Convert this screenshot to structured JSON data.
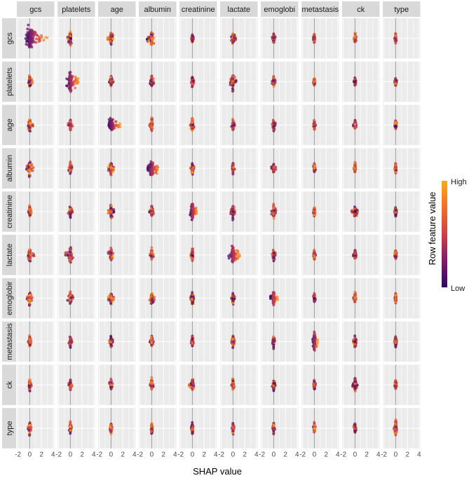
{
  "colors": {
    "panel_background": "#ebebeb",
    "strip_background": "#d9d9d9",
    "grid": "#ffffff",
    "zero_line": "#999999",
    "low": "#2d0a5a",
    "high": "#fcaa1a"
  },
  "chart_data": {
    "type": "scatter",
    "subtype": "SHAP interaction beeswarm matrix",
    "features": [
      "gcs",
      "platelets",
      "age",
      "albumin",
      "creatinine",
      "lactate",
      "emoglobin",
      "metastasis",
      "ck",
      "type"
    ],
    "column_labels": [
      "gcs",
      "platelets",
      "age",
      "albumin",
      "creatinine",
      "lactate",
      "emoglobi",
      "metastasis",
      "ck",
      "type"
    ],
    "row_labels": [
      "gcs",
      "platelets",
      "age",
      "albumin",
      "creatinine",
      "lactate",
      "emoglobir",
      "metastasis",
      "ck",
      "type"
    ],
    "x_ticks": [
      "-2",
      "0",
      "2",
      "4"
    ],
    "xlim": [
      -2.2,
      4.2
    ],
    "xlabel": "SHAP value",
    "legend": {
      "title": "Row feature value",
      "high_label": "High",
      "low_label": "Low",
      "placement": "right"
    },
    "grid": true,
    "cells_note_keys": "row|col : [left extent, right extent, visual spread]",
    "cells": {
      "0|0": [
        -0.7,
        3.0,
        1.0
      ],
      "0|1": [
        -0.5,
        0.2,
        0.7
      ],
      "0|2": [
        -0.6,
        0.4,
        0.6
      ],
      "0|3": [
        -0.8,
        0.4,
        0.7
      ],
      "0|4": [
        -0.2,
        0.2,
        0.4
      ],
      "0|5": [
        -0.3,
        0.5,
        0.6
      ],
      "0|6": [
        -0.3,
        0.3,
        0.5
      ],
      "0|7": [
        -0.2,
        0.2,
        0.5
      ],
      "0|8": [
        -0.2,
        0.2,
        0.5
      ],
      "0|9": [
        -0.2,
        0.2,
        0.5
      ],
      "1|0": [
        -0.4,
        0.5,
        0.6
      ],
      "1|1": [
        -0.7,
        1.4,
        1.0
      ],
      "1|2": [
        -0.3,
        0.4,
        0.6
      ],
      "1|3": [
        -0.3,
        0.4,
        0.6
      ],
      "1|4": [
        -0.2,
        0.3,
        0.5
      ],
      "1|5": [
        -0.5,
        0.6,
        0.8
      ],
      "1|6": [
        -0.3,
        0.3,
        0.5
      ],
      "1|7": [
        -0.2,
        0.2,
        0.4
      ],
      "1|8": [
        -0.2,
        0.2,
        0.4
      ],
      "1|9": [
        -0.2,
        0.2,
        0.4
      ],
      "2|0": [
        -0.6,
        0.6,
        0.6
      ],
      "2|1": [
        -0.4,
        0.4,
        0.6
      ],
      "2|2": [
        -0.4,
        1.6,
        0.7
      ],
      "2|3": [
        -0.4,
        0.4,
        0.6
      ],
      "2|4": [
        -0.4,
        0.4,
        0.7
      ],
      "2|5": [
        -0.3,
        0.3,
        0.6
      ],
      "2|6": [
        -0.3,
        0.3,
        0.6
      ],
      "2|7": [
        -0.2,
        0.2,
        0.5
      ],
      "2|8": [
        -0.3,
        0.3,
        0.5
      ],
      "2|9": [
        -0.2,
        0.2,
        0.5
      ],
      "3|0": [
        -0.6,
        0.7,
        0.7
      ],
      "3|1": [
        -0.3,
        0.3,
        0.6
      ],
      "3|2": [
        -0.5,
        0.5,
        0.7
      ],
      "3|3": [
        -0.7,
        1.3,
        0.7
      ],
      "3|4": [
        -0.3,
        0.3,
        0.6
      ],
      "3|5": [
        -0.3,
        0.3,
        0.6
      ],
      "3|6": [
        -0.4,
        0.4,
        0.6
      ],
      "3|7": [
        -0.2,
        0.2,
        0.5
      ],
      "3|8": [
        -0.2,
        0.2,
        0.5
      ],
      "3|9": [
        -0.2,
        0.2,
        0.5
      ],
      "4|0": [
        -0.3,
        0.3,
        0.6
      ],
      "4|1": [
        -0.4,
        0.4,
        0.6
      ],
      "4|2": [
        -0.5,
        0.5,
        0.7
      ],
      "4|3": [
        -0.4,
        0.4,
        0.6
      ],
      "4|4": [
        -0.4,
        0.8,
        0.8
      ],
      "4|5": [
        -0.4,
        0.4,
        0.7
      ],
      "4|6": [
        -0.4,
        0.4,
        0.7
      ],
      "4|7": [
        -0.2,
        0.2,
        0.5
      ],
      "4|8": [
        -0.6,
        0.6,
        0.5
      ],
      "4|9": [
        -0.2,
        0.2,
        0.5
      ],
      "5|0": [
        -0.7,
        0.8,
        0.6
      ],
      "5|1": [
        -0.9,
        0.5,
        0.9
      ],
      "5|2": [
        -0.5,
        0.4,
        0.7
      ],
      "5|3": [
        -0.3,
        0.3,
        0.6
      ],
      "5|4": [
        -0.3,
        0.3,
        0.6
      ],
      "5|5": [
        -0.8,
        1.2,
        0.9
      ],
      "5|6": [
        -0.3,
        0.3,
        0.6
      ],
      "5|7": [
        -0.2,
        0.2,
        0.5
      ],
      "5|8": [
        -0.3,
        0.3,
        0.5
      ],
      "5|9": [
        -0.2,
        0.2,
        0.5
      ],
      "6|0": [
        -0.5,
        0.5,
        0.6
      ],
      "6|1": [
        -0.5,
        0.5,
        0.6
      ],
      "6|2": [
        -0.5,
        0.5,
        0.6
      ],
      "6|3": [
        -0.5,
        0.6,
        0.6
      ],
      "6|4": [
        -0.3,
        0.3,
        0.6
      ],
      "6|5": [
        -0.3,
        0.3,
        0.6
      ],
      "6|6": [
        -0.6,
        0.7,
        0.7
      ],
      "6|7": [
        -0.2,
        0.2,
        0.5
      ],
      "6|8": [
        -0.3,
        0.3,
        0.5
      ],
      "6|9": [
        -0.2,
        0.2,
        0.5
      ],
      "7|0": [
        -0.3,
        0.3,
        0.6
      ],
      "7|1": [
        -0.3,
        0.3,
        0.6
      ],
      "7|2": [
        -0.3,
        0.3,
        0.6
      ],
      "7|3": [
        -0.3,
        0.3,
        0.6
      ],
      "7|4": [
        -0.2,
        0.2,
        0.6
      ],
      "7|5": [
        -0.3,
        0.3,
        0.6
      ],
      "7|6": [
        -0.2,
        0.2,
        0.6
      ],
      "7|7": [
        -0.3,
        0.6,
        0.9
      ],
      "7|8": [
        -0.3,
        0.3,
        0.6
      ],
      "7|9": [
        -0.2,
        0.2,
        0.6
      ],
      "8|0": [
        -0.3,
        0.3,
        0.6
      ],
      "8|1": [
        -0.3,
        0.3,
        0.6
      ],
      "8|2": [
        -0.3,
        0.3,
        0.6
      ],
      "8|3": [
        -0.3,
        0.3,
        0.6
      ],
      "8|4": [
        -0.6,
        0.6,
        0.5
      ],
      "8|5": [
        -0.3,
        0.3,
        0.6
      ],
      "8|6": [
        -0.3,
        0.3,
        0.6
      ],
      "8|7": [
        -0.2,
        0.2,
        0.5
      ],
      "8|8": [
        -0.4,
        0.4,
        0.7
      ],
      "8|9": [
        -0.2,
        0.2,
        0.5
      ],
      "9|0": [
        -0.3,
        0.3,
        0.6
      ],
      "9|1": [
        -0.2,
        0.2,
        0.6
      ],
      "9|2": [
        -0.2,
        0.2,
        0.6
      ],
      "9|3": [
        -0.2,
        0.2,
        0.6
      ],
      "9|4": [
        -0.2,
        0.2,
        0.6
      ],
      "9|5": [
        -0.2,
        0.2,
        0.6
      ],
      "9|6": [
        -0.2,
        0.2,
        0.6
      ],
      "9|7": [
        -0.2,
        0.2,
        0.6
      ],
      "9|8": [
        -0.2,
        0.2,
        0.6
      ],
      "9|9": [
        -0.3,
        0.3,
        0.7
      ]
    }
  }
}
